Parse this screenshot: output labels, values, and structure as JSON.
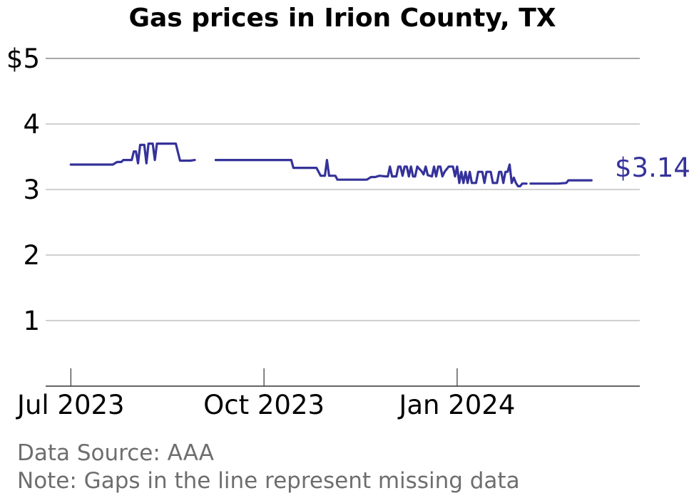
{
  "chart_data": {
    "type": "line",
    "title": "Gas prices in Irion County, TX",
    "xlabel": "",
    "ylabel": "",
    "yticks": [
      {
        "value": 5,
        "label": "$5"
      },
      {
        "value": 4,
        "label": "4"
      },
      {
        "value": 3,
        "label": "3"
      },
      {
        "value": 2,
        "label": "2"
      },
      {
        "value": 1,
        "label": "1"
      }
    ],
    "xticks": [
      {
        "value": "2023-07-01",
        "label": "Jul 2023"
      },
      {
        "value": "2023-10-01",
        "label": "Oct 2023"
      },
      {
        "value": "2024-01-01",
        "label": "Jan 2024"
      }
    ],
    "xlim": [
      "2023-06-19",
      "2024-03-28"
    ],
    "ylim": [
      0,
      5.1
    ],
    "grid": "horizontal",
    "series": [
      {
        "color": "#35329a",
        "segments": [
          [
            [
              "2023-07-01",
              3.38
            ],
            [
              "2023-07-21",
              3.38
            ],
            [
              "2023-07-23",
              3.42
            ],
            [
              "2023-07-25",
              3.42
            ],
            [
              "2023-07-26",
              3.45
            ],
            [
              "2023-07-30",
              3.45
            ],
            [
              "2023-07-31",
              3.58
            ],
            [
              "2023-08-01",
              3.58
            ],
            [
              "2023-08-02",
              3.4
            ],
            [
              "2023-08-03",
              3.68
            ],
            [
              "2023-08-05",
              3.68
            ],
            [
              "2023-08-06",
              3.4
            ],
            [
              "2023-08-07",
              3.7
            ],
            [
              "2023-08-09",
              3.7
            ],
            [
              "2023-08-10",
              3.45
            ],
            [
              "2023-08-11",
              3.7
            ],
            [
              "2023-08-20",
              3.7
            ],
            [
              "2023-08-22",
              3.44
            ],
            [
              "2023-08-27",
              3.44
            ],
            [
              "2023-08-29",
              3.45
            ]
          ],
          [
            [
              "2023-09-08",
              3.45
            ],
            [
              "2023-10-14",
              3.45
            ],
            [
              "2023-10-15",
              3.33
            ],
            [
              "2023-10-26",
              3.33
            ],
            [
              "2023-10-28",
              3.21
            ],
            [
              "2023-10-30",
              3.21
            ],
            [
              "2023-10-31",
              3.45
            ],
            [
              "2023-11-01",
              3.21
            ],
            [
              "2023-11-04",
              3.21
            ],
            [
              "2023-11-05",
              3.15
            ],
            [
              "2023-11-19",
              3.15
            ],
            [
              "2023-11-21",
              3.19
            ],
            [
              "2023-11-23",
              3.19
            ],
            [
              "2023-11-25",
              3.21
            ],
            [
              "2023-11-28",
              3.2
            ],
            [
              "2023-11-29",
              3.2
            ],
            [
              "2023-11-30",
              3.35
            ],
            [
              "2023-12-01",
              3.2
            ],
            [
              "2023-12-03",
              3.2
            ],
            [
              "2023-12-04",
              3.35
            ],
            [
              "2023-12-05",
              3.35
            ],
            [
              "2023-12-06",
              3.21
            ],
            [
              "2023-12-07",
              3.35
            ],
            [
              "2023-12-08",
              3.35
            ],
            [
              "2023-12-09",
              3.2
            ],
            [
              "2023-12-10",
              3.35
            ],
            [
              "2023-12-11",
              3.2
            ],
            [
              "2023-12-12",
              3.2
            ],
            [
              "2023-12-13",
              3.35
            ],
            [
              "2023-12-15",
              3.28
            ],
            [
              "2023-12-16",
              3.23
            ],
            [
              "2023-12-17",
              3.35
            ],
            [
              "2023-12-18",
              3.22
            ],
            [
              "2023-12-20",
              3.2
            ],
            [
              "2023-12-21",
              3.35
            ],
            [
              "2023-12-22",
              3.2
            ],
            [
              "2023-12-23",
              3.35
            ],
            [
              "2023-12-24",
              3.35
            ],
            [
              "2023-12-25",
              3.2
            ],
            [
              "2023-12-26",
              3.27
            ],
            [
              "2023-12-28",
              3.35
            ],
            [
              "2023-12-30",
              3.35
            ],
            [
              "2023-12-31",
              3.2
            ],
            [
              "2024-01-01",
              3.35
            ],
            [
              "2024-01-02",
              3.1
            ],
            [
              "2024-01-03",
              3.27
            ],
            [
              "2024-01-04",
              3.1
            ],
            [
              "2024-01-05",
              3.27
            ],
            [
              "2024-01-06",
              3.1
            ],
            [
              "2024-01-07",
              3.27
            ],
            [
              "2024-01-08",
              3.1
            ],
            [
              "2024-01-10",
              3.1
            ],
            [
              "2024-01-11",
              3.27
            ],
            [
              "2024-01-13",
              3.27
            ],
            [
              "2024-01-14",
              3.1
            ],
            [
              "2024-01-15",
              3.27
            ],
            [
              "2024-01-17",
              3.27
            ],
            [
              "2024-01-18",
              3.1
            ],
            [
              "2024-01-20",
              3.1
            ],
            [
              "2024-01-21",
              3.27
            ],
            [
              "2024-01-22",
              3.27
            ],
            [
              "2024-01-23",
              3.1
            ],
            [
              "2024-01-24",
              3.27
            ],
            [
              "2024-01-25",
              3.27
            ],
            [
              "2024-01-26",
              3.38
            ],
            [
              "2024-01-27",
              3.1
            ],
            [
              "2024-01-28",
              3.18
            ],
            [
              "2024-01-29",
              3.1
            ],
            [
              "2024-01-30",
              3.05
            ],
            [
              "2024-01-31",
              3.05
            ],
            [
              "2024-02-01",
              3.09
            ],
            [
              "2024-02-03",
              3.09
            ]
          ],
          [
            [
              "2024-02-05",
              3.09
            ],
            [
              "2024-02-18",
              3.09
            ],
            [
              "2024-02-22",
              3.1
            ],
            [
              "2024-02-23",
              3.14
            ],
            [
              "2024-03-05",
              3.14
            ]
          ]
        ]
      }
    ],
    "end_label": "$3.14",
    "source": "Data Source: AAA",
    "note": "Note: Gaps in the line represent missing data"
  }
}
